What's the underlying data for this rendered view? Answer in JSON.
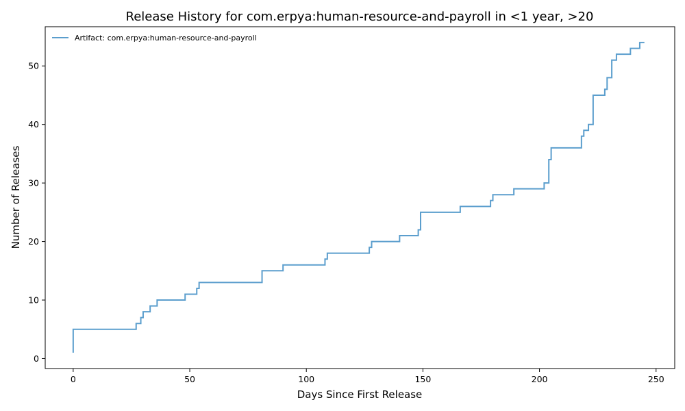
{
  "chart_data": {
    "type": "line",
    "step": true,
    "title": "Release History for com.erpya:human-resource-and-payroll in <1 year, >20",
    "xlabel": "Days Since First Release",
    "ylabel": "Number of Releases",
    "xlim": [
      -12,
      258
    ],
    "ylim": [
      -1.7,
      56.7
    ],
    "xticks": [
      0,
      50,
      100,
      150,
      200,
      250
    ],
    "yticks": [
      0,
      10,
      20,
      30,
      40,
      50
    ],
    "grid": false,
    "legend_position": "top-left",
    "colors": {
      "series": "#5b9ecd",
      "axis": "#000000"
    },
    "series": [
      {
        "name": "Artifact: com.erpya:human-resource-and-payroll",
        "x": [
          0,
          0,
          27,
          29,
          30,
          31,
          33,
          36,
          48,
          53,
          54,
          81,
          90,
          108,
          109,
          127,
          128,
          140,
          148,
          149,
          166,
          179,
          180,
          189,
          202,
          204,
          205,
          218,
          219,
          221,
          223,
          228,
          229,
          231,
          233,
          239,
          243,
          245
        ],
        "y": [
          1,
          5,
          6,
          7,
          8,
          8,
          9,
          10,
          11,
          12,
          13,
          15,
          16,
          17,
          18,
          19,
          20,
          21,
          22,
          25,
          26,
          27,
          28,
          29,
          30,
          34,
          36,
          38,
          39,
          40,
          45,
          46,
          48,
          51,
          52,
          53,
          54,
          54
        ]
      }
    ]
  }
}
